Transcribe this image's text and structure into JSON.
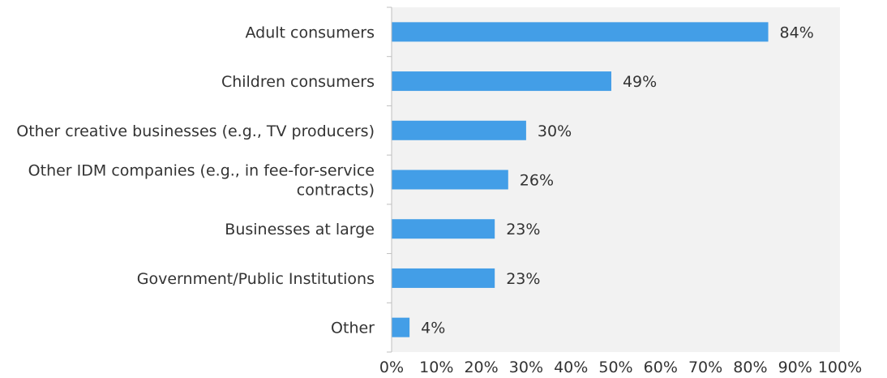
{
  "chart_data": {
    "type": "bar",
    "orientation": "horizontal",
    "categories": [
      [
        "Adult consumers"
      ],
      [
        "Children consumers"
      ],
      [
        "Other creative businesses (e.g., TV producers)"
      ],
      [
        "Other IDM companies (e.g., in fee-for-service",
        "contracts)"
      ],
      [
        "Businesses at large"
      ],
      [
        "Government/Public Institutions"
      ],
      [
        "Other"
      ]
    ],
    "values": [
      84,
      49,
      30,
      26,
      23,
      23,
      4
    ],
    "value_labels": [
      "84%",
      "49%",
      "30%",
      "26%",
      "23%",
      "23%",
      "4%"
    ],
    "xlim": [
      0,
      100
    ],
    "xticks": [
      "0%",
      "10%",
      "20%",
      "30%",
      "40%",
      "50%",
      "60%",
      "70%",
      "80%",
      "90%",
      "100%"
    ],
    "grid": false,
    "colors": {
      "bar": "#439ee7",
      "plot_background": "#f2f2f2",
      "axis": "#bfbfbf",
      "text": "#333333"
    }
  }
}
